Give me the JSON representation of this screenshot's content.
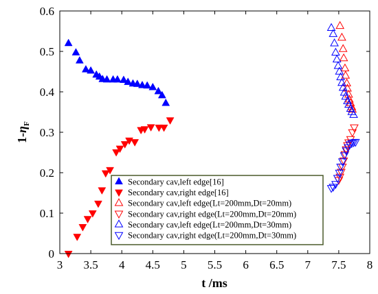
{
  "chart_data": {
    "type": "scatter",
    "xlabel": "t /ms",
    "ylabel": {
      "prefix": "1-",
      "symbol": "η",
      "sub": "F"
    },
    "xlim": [
      3,
      8
    ],
    "ylim": [
      0,
      0.6
    ],
    "xticks": [
      "3",
      "3.5",
      "4",
      "4.5",
      "5",
      "5.5",
      "6",
      "6.5",
      "7",
      "7.5",
      "8"
    ],
    "yticks": [
      "0",
      "0.1",
      "0.2",
      "0.3",
      "0.4",
      "0.5",
      "0.6"
    ],
    "xtick_values": [
      3,
      3.5,
      4,
      4.5,
      5,
      5.5,
      6,
      6.5,
      7,
      7.5,
      8
    ],
    "ytick_values": [
      0,
      0.1,
      0.2,
      0.3,
      0.4,
      0.5,
      0.6
    ],
    "legend_position": "lower-right inside plot",
    "grid": false,
    "series": [
      {
        "name": "Secondary cav,left edge[16]",
        "marker": "triangle-up",
        "filled": true,
        "color": "#0000ff",
        "points": [
          [
            3.14,
            0.52
          ],
          [
            3.26,
            0.497
          ],
          [
            3.32,
            0.477
          ],
          [
            3.42,
            0.455
          ],
          [
            3.5,
            0.452
          ],
          [
            3.59,
            0.442
          ],
          [
            3.64,
            0.437
          ],
          [
            3.69,
            0.431
          ],
          [
            3.76,
            0.43
          ],
          [
            3.86,
            0.43
          ],
          [
            3.93,
            0.43
          ],
          [
            4.03,
            0.429
          ],
          [
            4.1,
            0.424
          ],
          [
            4.18,
            0.42
          ],
          [
            4.25,
            0.419
          ],
          [
            4.33,
            0.416
          ],
          [
            4.41,
            0.415
          ],
          [
            4.5,
            0.411
          ],
          [
            4.59,
            0.401
          ],
          [
            4.65,
            0.391
          ],
          [
            4.71,
            0.372
          ]
        ]
      },
      {
        "name": "Secondary cav,right edge[16]",
        "marker": "triangle-down",
        "filled": true,
        "color": "#ff0000",
        "points": [
          [
            3.14,
            0.0
          ],
          [
            3.28,
            0.042
          ],
          [
            3.37,
            0.066
          ],
          [
            3.45,
            0.086
          ],
          [
            3.53,
            0.1
          ],
          [
            3.62,
            0.124
          ],
          [
            3.68,
            0.157
          ],
          [
            3.74,
            0.199
          ],
          [
            3.81,
            0.207
          ],
          [
            3.91,
            0.251
          ],
          [
            3.97,
            0.26
          ],
          [
            4.05,
            0.271
          ],
          [
            4.12,
            0.28
          ],
          [
            4.21,
            0.276
          ],
          [
            4.31,
            0.306
          ],
          [
            4.37,
            0.308
          ],
          [
            4.47,
            0.313
          ],
          [
            4.6,
            0.312
          ],
          [
            4.68,
            0.312
          ],
          [
            4.78,
            0.33
          ]
        ]
      },
      {
        "name": "Secondary cav,left edge(Lt=200mm,Dt=20mm)",
        "marker": "triangle-up",
        "filled": false,
        "color": "#ff0000",
        "points": [
          [
            7.52,
            0.563
          ],
          [
            7.55,
            0.534
          ],
          [
            7.57,
            0.506
          ],
          [
            7.58,
            0.483
          ],
          [
            7.6,
            0.458
          ],
          [
            7.61,
            0.44
          ],
          [
            7.63,
            0.421
          ],
          [
            7.64,
            0.408
          ],
          [
            7.66,
            0.393
          ],
          [
            7.67,
            0.381
          ],
          [
            7.69,
            0.372
          ],
          [
            7.71,
            0.362
          ],
          [
            7.72,
            0.356
          ]
        ]
      },
      {
        "name": "Secondary cav,right  edge(Lt=200mm,Dt=20mm)",
        "marker": "triangle-down",
        "filled": false,
        "color": "#ff0000",
        "points": [
          [
            7.5,
            0.182
          ],
          [
            7.52,
            0.19
          ],
          [
            7.54,
            0.202
          ],
          [
            7.56,
            0.215
          ],
          [
            7.58,
            0.23
          ],
          [
            7.6,
            0.246
          ],
          [
            7.62,
            0.258
          ],
          [
            7.64,
            0.268
          ],
          [
            7.66,
            0.275
          ],
          [
            7.69,
            0.283
          ],
          [
            7.72,
            0.3
          ],
          [
            7.75,
            0.312
          ]
        ]
      },
      {
        "name": "Secondary cav,left edge(Lt=200mm,Dt=30mm)",
        "marker": "triangle-up",
        "filled": false,
        "color": "#0000ff",
        "points": [
          [
            7.38,
            0.558
          ],
          [
            7.41,
            0.543
          ],
          [
            7.43,
            0.52
          ],
          [
            7.45,
            0.497
          ],
          [
            7.47,
            0.48
          ],
          [
            7.49,
            0.464
          ],
          [
            7.51,
            0.45
          ],
          [
            7.53,
            0.436
          ],
          [
            7.55,
            0.422
          ],
          [
            7.57,
            0.41
          ],
          [
            7.59,
            0.398
          ],
          [
            7.61,
            0.388
          ],
          [
            7.64,
            0.377
          ],
          [
            7.66,
            0.368
          ],
          [
            7.69,
            0.358
          ],
          [
            7.71,
            0.35
          ],
          [
            7.74,
            0.343
          ]
        ]
      },
      {
        "name": "Secondary cav,right  edge(Lt=200mm,Dt=30mm)",
        "marker": "triangle-down",
        "filled": false,
        "color": "#0000ff",
        "points": [
          [
            7.38,
            0.162
          ],
          [
            7.41,
            0.165
          ],
          [
            7.45,
            0.172
          ],
          [
            7.48,
            0.187
          ],
          [
            7.51,
            0.2
          ],
          [
            7.53,
            0.215
          ],
          [
            7.56,
            0.228
          ],
          [
            7.59,
            0.243
          ],
          [
            7.62,
            0.255
          ],
          [
            7.65,
            0.263
          ],
          [
            7.68,
            0.27
          ],
          [
            7.71,
            0.273
          ],
          [
            7.74,
            0.275
          ],
          [
            7.77,
            0.276
          ]
        ]
      }
    ]
  }
}
